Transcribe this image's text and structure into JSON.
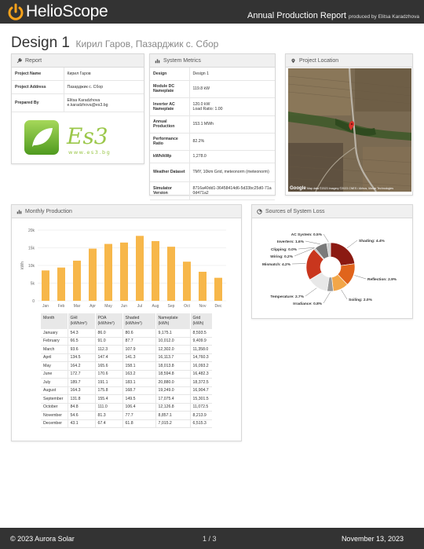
{
  "header": {
    "logo_text": "HelioScope",
    "report_title": "Annual Production Report",
    "produced_by": "produced by Elitsa Karadzhova"
  },
  "design": {
    "name": "Design 1",
    "subtitle": "Кирил Гаров, Пазарджик с. Сбор"
  },
  "report_panel": {
    "title": "Report",
    "rows": [
      {
        "key": "Project Name",
        "value": "Кирил Гаров"
      },
      {
        "key": "Project Address",
        "value": "Пазарджик с. Сбор"
      },
      {
        "key": "Prepared By",
        "value": "Elitsa Karadzhova",
        "value2": "e.karadzhova@es3.bg"
      }
    ],
    "logo_text": "Es3",
    "logo_url": "www.es3.bg"
  },
  "metrics_panel": {
    "title": "System Metrics",
    "rows": [
      {
        "key": "Design",
        "value": "Design 1"
      },
      {
        "key": "Module DC Nameplate",
        "value": "119.8 kW"
      },
      {
        "key": "Inverter AC Nameplate",
        "value": "120.0 kW",
        "value2": "Load Ratio: 1.00"
      },
      {
        "key": "Annual Production",
        "value": "153.1 MWh"
      },
      {
        "key": "Performance Ratio",
        "value": "82.2%"
      },
      {
        "key": "kWh/kWp",
        "value": "1,278.0"
      },
      {
        "key": "Weather Dataset",
        "value": "TMY, 10km Grid, meteonorm (meteonorm)"
      },
      {
        "key": "Simulator Version",
        "value": "8716a40dd1-36458414d6-5d33bc25d0-71a0d471a2"
      }
    ]
  },
  "location_panel": {
    "title": "Project Location",
    "google": "Google",
    "credit": "Map data ©2023 Imagery ©2023 CNES / Airbus, Maxar Technologies"
  },
  "monthly_panel": {
    "title": "Monthly Production",
    "table": {
      "headers": [
        "Month",
        "GHI (kWh/m²)",
        "POA (kWh/m²)",
        "Shaded (kWh/m²)",
        "Nameplate (kWh)",
        "Grid (kWh)"
      ],
      "rows": [
        [
          "January",
          "54.3",
          "86.0",
          "80.6",
          "9,175.1",
          "8,593.5"
        ],
        [
          "February",
          "66.5",
          "91.0",
          "87.7",
          "10,012.0",
          "9,409.9"
        ],
        [
          "March",
          "93.6",
          "112.3",
          "107.9",
          "12,302.0",
          "11,358.0"
        ],
        [
          "April",
          "134.5",
          "147.4",
          "141.3",
          "16,113.7",
          "14,760.3"
        ],
        [
          "May",
          "164.2",
          "165.6",
          "158.1",
          "18,013.8",
          "16,093.2"
        ],
        [
          "June",
          "172.7",
          "170.6",
          "163.2",
          "18,594.8",
          "16,482.3"
        ],
        [
          "July",
          "189.7",
          "191.1",
          "183.1",
          "20,880.0",
          "18,372.5"
        ],
        [
          "August",
          "164.3",
          "175.8",
          "168.7",
          "19,249.0",
          "16,904.7"
        ],
        [
          "September",
          "131.8",
          "155.4",
          "149.5",
          "17,075.4",
          "15,301.5"
        ],
        [
          "October",
          "84.8",
          "111.0",
          "106.4",
          "12,126.8",
          "11,072.5"
        ],
        [
          "November",
          "54.6",
          "81.3",
          "77.7",
          "8,857.1",
          "8,213.9"
        ],
        [
          "December",
          "43.1",
          "67.4",
          "61.8",
          "7,015.2",
          "6,515.3"
        ]
      ]
    }
  },
  "chart_data": [
    {
      "type": "bar",
      "title": "",
      "ylabel": "kWh",
      "categories": [
        "Jan",
        "Feb",
        "Mar",
        "Apr",
        "May",
        "Jun",
        "Jul",
        "Aug",
        "Sep",
        "Oct",
        "Nov",
        "Dec"
      ],
      "values": [
        8593.5,
        9409.9,
        11358.0,
        14760.3,
        16093.2,
        16482.3,
        18372.5,
        16904.7,
        15301.5,
        11072.5,
        8213.9,
        6515.3
      ],
      "ylim": [
        0,
        20000
      ],
      "yticks": [
        "0",
        "5k",
        "10k",
        "15k",
        "20k"
      ],
      "color": "#f7b74a",
      "grid": true
    },
    {
      "type": "pie",
      "title": "Sources of System Loss",
      "slices": [
        {
          "label": "Shading",
          "value": 4.4,
          "display": "Shading: 4.4%",
          "color": "#8b1a12"
        },
        {
          "label": "Reflection",
          "value": 2.9,
          "display": "Reflection: 2.9%",
          "color": "#e0641c"
        },
        {
          "label": "Soiling",
          "value": 2.0,
          "display": "Soiling: 2.0%",
          "color": "#f2a649"
        },
        {
          "label": "Irradiance",
          "value": 0.8,
          "display": "Irradiance: 0.8%",
          "color": "#9a9a9a"
        },
        {
          "label": "Temperature",
          "value": 2.7,
          "display": "Temperature: 2.7%",
          "color": "#e8e8e8"
        },
        {
          "label": "Mismatch",
          "value": 4.2,
          "display": "Mismatch: 4.2%",
          "color": "#c9361d"
        },
        {
          "label": "Wiring",
          "value": 0.2,
          "display": "Wiring: 0.2%",
          "color": "#b0b0b0"
        },
        {
          "label": "Clipping",
          "value": 0.0,
          "display": "Clipping: 0.0%",
          "color": "#5a5a5a"
        },
        {
          "label": "Inverters",
          "value": 1.6,
          "display": "Inverters: 1.6%",
          "color": "#7a7a7a"
        },
        {
          "label": "AC System",
          "value": 0.5,
          "display": "AC System: 0.5%",
          "color": "#cfcfcf"
        }
      ]
    }
  ],
  "footer": {
    "copyright": "© 2023",
    "company": "Aurora Solar",
    "page": "1 / 3",
    "date": "November 13, 2023"
  },
  "colors": {
    "topbar": "#333333",
    "accent_bar": "#f7b74a"
  }
}
